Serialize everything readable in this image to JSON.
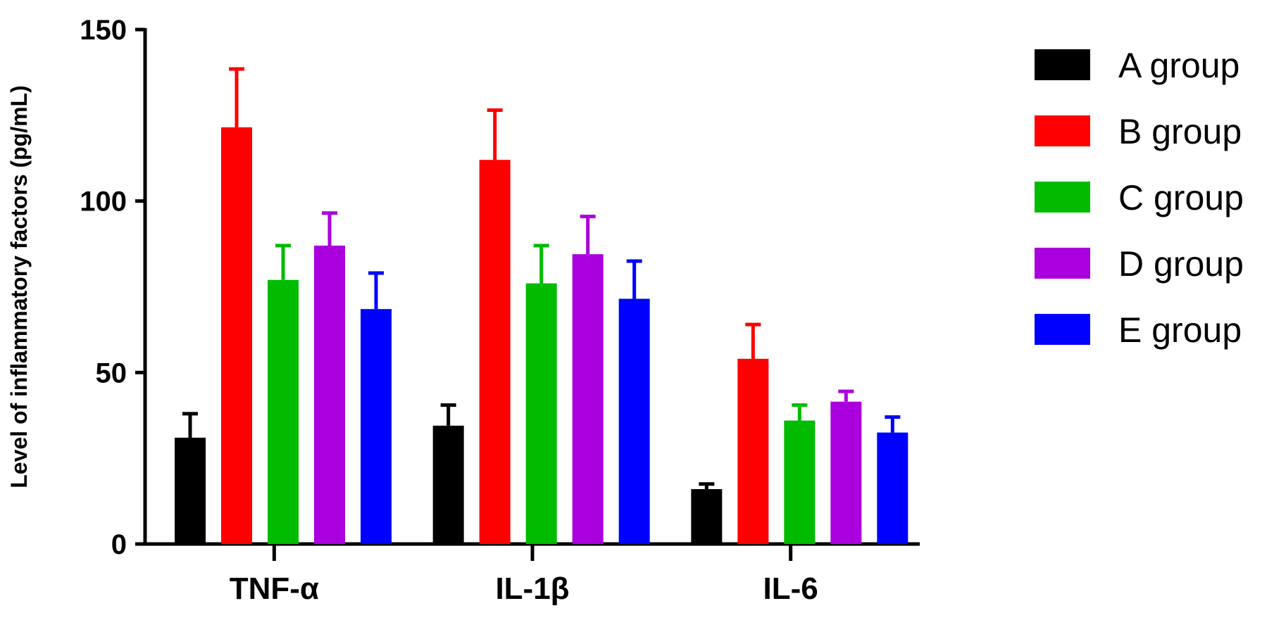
{
  "chart_data": {
    "type": "bar",
    "title": "",
    "xlabel": "",
    "ylabel": "Level of inflammatory factors (pg/mL)",
    "ylim": [
      0,
      150
    ],
    "yticks": [
      0,
      50,
      100,
      150
    ],
    "grid": false,
    "legend_position": "right",
    "categories": [
      "TNF-α",
      "IL-1β",
      "IL-6"
    ],
    "series": [
      {
        "name": "A group",
        "color": "#000000",
        "values": [
          31,
          34.5,
          16
        ],
        "errors": [
          7,
          6,
          1.5
        ]
      },
      {
        "name": "B group",
        "color": "#ff0000",
        "values": [
          121.5,
          112,
          54
        ],
        "errors": [
          17,
          14.5,
          10
        ]
      },
      {
        "name": "C group",
        "color": "#00bb00",
        "values": [
          77,
          76,
          36
        ],
        "errors": [
          10,
          11,
          4.5
        ]
      },
      {
        "name": "D group",
        "color": "#aa00dd",
        "values": [
          87,
          84.5,
          41.5
        ],
        "errors": [
          9.5,
          11,
          3
        ]
      },
      {
        "name": "E group",
        "color": "#0000ff",
        "values": [
          68.5,
          71.5,
          32.5
        ],
        "errors": [
          10.5,
          11,
          4.5
        ]
      }
    ]
  }
}
